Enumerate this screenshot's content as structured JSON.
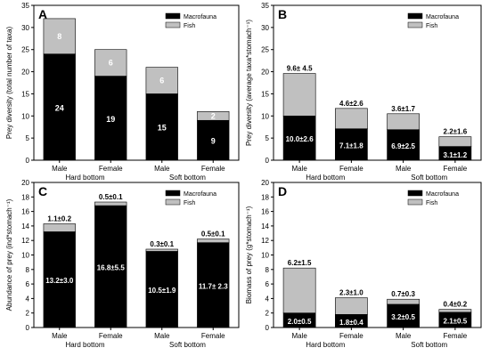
{
  "colors": {
    "macrofauna": "#000000",
    "fish": "#c0c0c0",
    "axis": "#000000",
    "label_on_dark": "#ffffff",
    "label_on_light": "#000000"
  },
  "chart_data": [
    {
      "type": "bar",
      "stacked": true,
      "panel_label": "A",
      "ylabel": "Prey diversity (total number of taxa)",
      "ylim": [
        0,
        35
      ],
      "yticks": [
        0,
        5,
        10,
        15,
        20,
        25,
        30,
        35
      ],
      "categories": [
        "Male",
        "Female",
        "Male",
        "Female"
      ],
      "groups": [
        "Hard bottom",
        "Soft bottom"
      ],
      "legend_position": "top-right",
      "series": [
        {
          "name": "Macrofauna",
          "values": [
            24,
            19,
            15,
            9
          ],
          "labels": [
            "24",
            "19",
            "15",
            "9"
          ]
        },
        {
          "name": "Fish",
          "values": [
            8,
            6,
            6,
            2
          ],
          "labels": [
            "8",
            "6",
            "6",
            "2"
          ]
        }
      ]
    },
    {
      "type": "bar",
      "stacked": true,
      "panel_label": "B",
      "ylabel": "Prey diversity (average taxa*stomach⁻¹)",
      "ylim": [
        0,
        35
      ],
      "yticks": [
        0,
        5,
        10,
        15,
        20,
        25,
        30,
        35
      ],
      "categories": [
        "Male",
        "Female",
        "Male",
        "Female"
      ],
      "groups": [
        "Hard bottom",
        "Soft bottom"
      ],
      "legend_position": "top-right",
      "series": [
        {
          "name": "Macrofauna",
          "values": [
            10.0,
            7.1,
            6.9,
            3.1
          ],
          "labels": [
            "10.0±2.6",
            "7.1±1.8",
            "6.9±2.5",
            "3.1±1.2"
          ]
        },
        {
          "name": "Fish",
          "values": [
            9.6,
            4.6,
            3.6,
            2.2
          ],
          "labels": [
            "9.6± 4.5",
            "4.6±2.6",
            "3.6±1.7",
            "2.2±1.6"
          ]
        }
      ]
    },
    {
      "type": "bar",
      "stacked": true,
      "panel_label": "C",
      "ylabel": "Abundance of prey (ind*stomach⁻¹)",
      "ylim": [
        0,
        20
      ],
      "yticks": [
        0,
        2,
        4,
        6,
        8,
        10,
        12,
        14,
        16,
        18,
        20
      ],
      "categories": [
        "Male",
        "Female",
        "Male",
        "Female"
      ],
      "groups": [
        "Hard bottom",
        "Soft bottom"
      ],
      "legend_position": "top-right",
      "series": [
        {
          "name": "Macrofauna",
          "values": [
            13.2,
            16.8,
            10.5,
            11.7
          ],
          "labels": [
            "13.2±3.0",
            "16.8±5.5",
            "10.5±1.9",
            "11.7± 2.3"
          ]
        },
        {
          "name": "Fish",
          "values": [
            1.1,
            0.5,
            0.3,
            0.5
          ],
          "labels": [
            "1.1±0.2",
            "0.5±0.1",
            "0.3±0.1",
            "0.5±0.1"
          ]
        }
      ]
    },
    {
      "type": "bar",
      "stacked": true,
      "panel_label": "D",
      "ylabel": "Biomass of prey (g*stomach⁻¹)",
      "ylim": [
        0,
        20
      ],
      "yticks": [
        0,
        2,
        4,
        6,
        8,
        10,
        12,
        14,
        16,
        18,
        20
      ],
      "categories": [
        "Male",
        "Female",
        "Male",
        "Female"
      ],
      "groups": [
        "Hard bottom",
        "Soft bottom"
      ],
      "legend_position": "top-right",
      "series": [
        {
          "name": "Macrofauna",
          "values": [
            2.0,
            1.8,
            3.2,
            2.1
          ],
          "labels": [
            "2.0±0.5",
            "1.8±0.4",
            "3.2±0.5",
            "2.1±0.5"
          ]
        },
        {
          "name": "Fish",
          "values": [
            6.2,
            2.3,
            0.7,
            0.4
          ],
          "labels": [
            "6.2±1.5",
            "2.3±1.0",
            "0.7±0.3",
            "0.4±0.2"
          ]
        }
      ]
    }
  ]
}
